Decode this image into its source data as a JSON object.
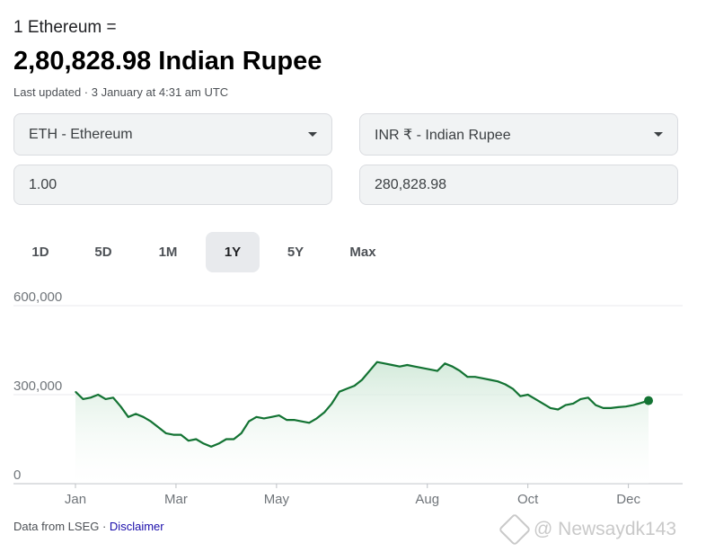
{
  "header": {
    "subtitle": "1 Ethereum =",
    "rate": "2,80,828.98 Indian Rupee",
    "updated": "Last updated · 3 January at 4:31 am UTC"
  },
  "converter": {
    "from_currency": "ETH - Ethereum",
    "to_currency": "INR ₹ - Indian Rupee",
    "from_amount": "1.00",
    "to_amount": "280,828.98"
  },
  "tabs": [
    {
      "label": "1D",
      "active": false
    },
    {
      "label": "5D",
      "active": false
    },
    {
      "label": "1M",
      "active": false
    },
    {
      "label": "1Y",
      "active": true
    },
    {
      "label": "5Y",
      "active": false
    },
    {
      "label": "Max",
      "active": false
    }
  ],
  "chart_data": {
    "type": "area",
    "y_tick_labels": [
      "600,000",
      "300,000",
      "0"
    ],
    "y_ticks": [
      600000,
      300000,
      0
    ],
    "ylim": [
      0,
      600000
    ],
    "x_tick_labels": [
      "Jan",
      "Mar",
      "May",
      "Aug",
      "Oct",
      "Dec"
    ],
    "x_tick_positions": [
      0,
      2,
      4,
      7,
      9,
      11
    ],
    "xlim": [
      0,
      11.4
    ],
    "grid": true,
    "line_color": "#137333",
    "fill_color": "#e6f4ea",
    "series": [
      {
        "x": [
          0,
          0.15,
          0.3,
          0.45,
          0.6,
          0.75,
          0.9,
          1.05,
          1.2,
          1.35,
          1.5,
          1.65,
          1.8,
          1.95,
          2.1,
          2.25,
          2.4,
          2.55,
          2.7,
          2.85,
          3.0,
          3.15,
          3.3,
          3.45,
          3.6,
          3.75,
          3.9,
          4.05,
          4.2,
          4.35,
          4.5,
          4.65,
          4.8,
          4.95,
          5.1,
          5.25,
          5.4,
          5.55,
          5.7,
          5.85,
          6.0,
          6.15,
          6.3,
          6.45,
          6.6,
          6.75,
          6.9,
          7.05,
          7.2,
          7.35,
          7.5,
          7.65,
          7.8,
          7.95,
          8.1,
          8.25,
          8.4,
          8.55,
          8.7,
          8.85,
          9.0,
          9.15,
          9.3,
          9.45,
          9.6,
          9.75,
          9.9,
          10.05,
          10.2,
          10.35,
          10.5,
          10.65,
          10.8,
          10.95,
          11.1,
          11.25,
          11.4
        ],
        "values": [
          310000,
          285000,
          290000,
          300000,
          285000,
          290000,
          260000,
          225000,
          235000,
          225000,
          210000,
          190000,
          170000,
          165000,
          165000,
          145000,
          150000,
          135000,
          125000,
          135000,
          150000,
          150000,
          170000,
          210000,
          225000,
          220000,
          225000,
          230000,
          215000,
          215000,
          210000,
          205000,
          220000,
          240000,
          270000,
          310000,
          320000,
          330000,
          350000,
          380000,
          410000,
          405000,
          400000,
          395000,
          400000,
          395000,
          390000,
          385000,
          380000,
          405000,
          395000,
          380000,
          360000,
          360000,
          355000,
          350000,
          345000,
          335000,
          320000,
          295000,
          300000,
          285000,
          270000,
          255000,
          250000,
          265000,
          270000,
          285000,
          290000,
          265000,
          255000,
          255000,
          258000,
          260000,
          265000,
          272000,
          280000
        ]
      }
    ]
  },
  "footer": {
    "source": "Data from LSEG · ",
    "disclaimer": "Disclaimer"
  },
  "watermark": "@ Newsaydk143"
}
